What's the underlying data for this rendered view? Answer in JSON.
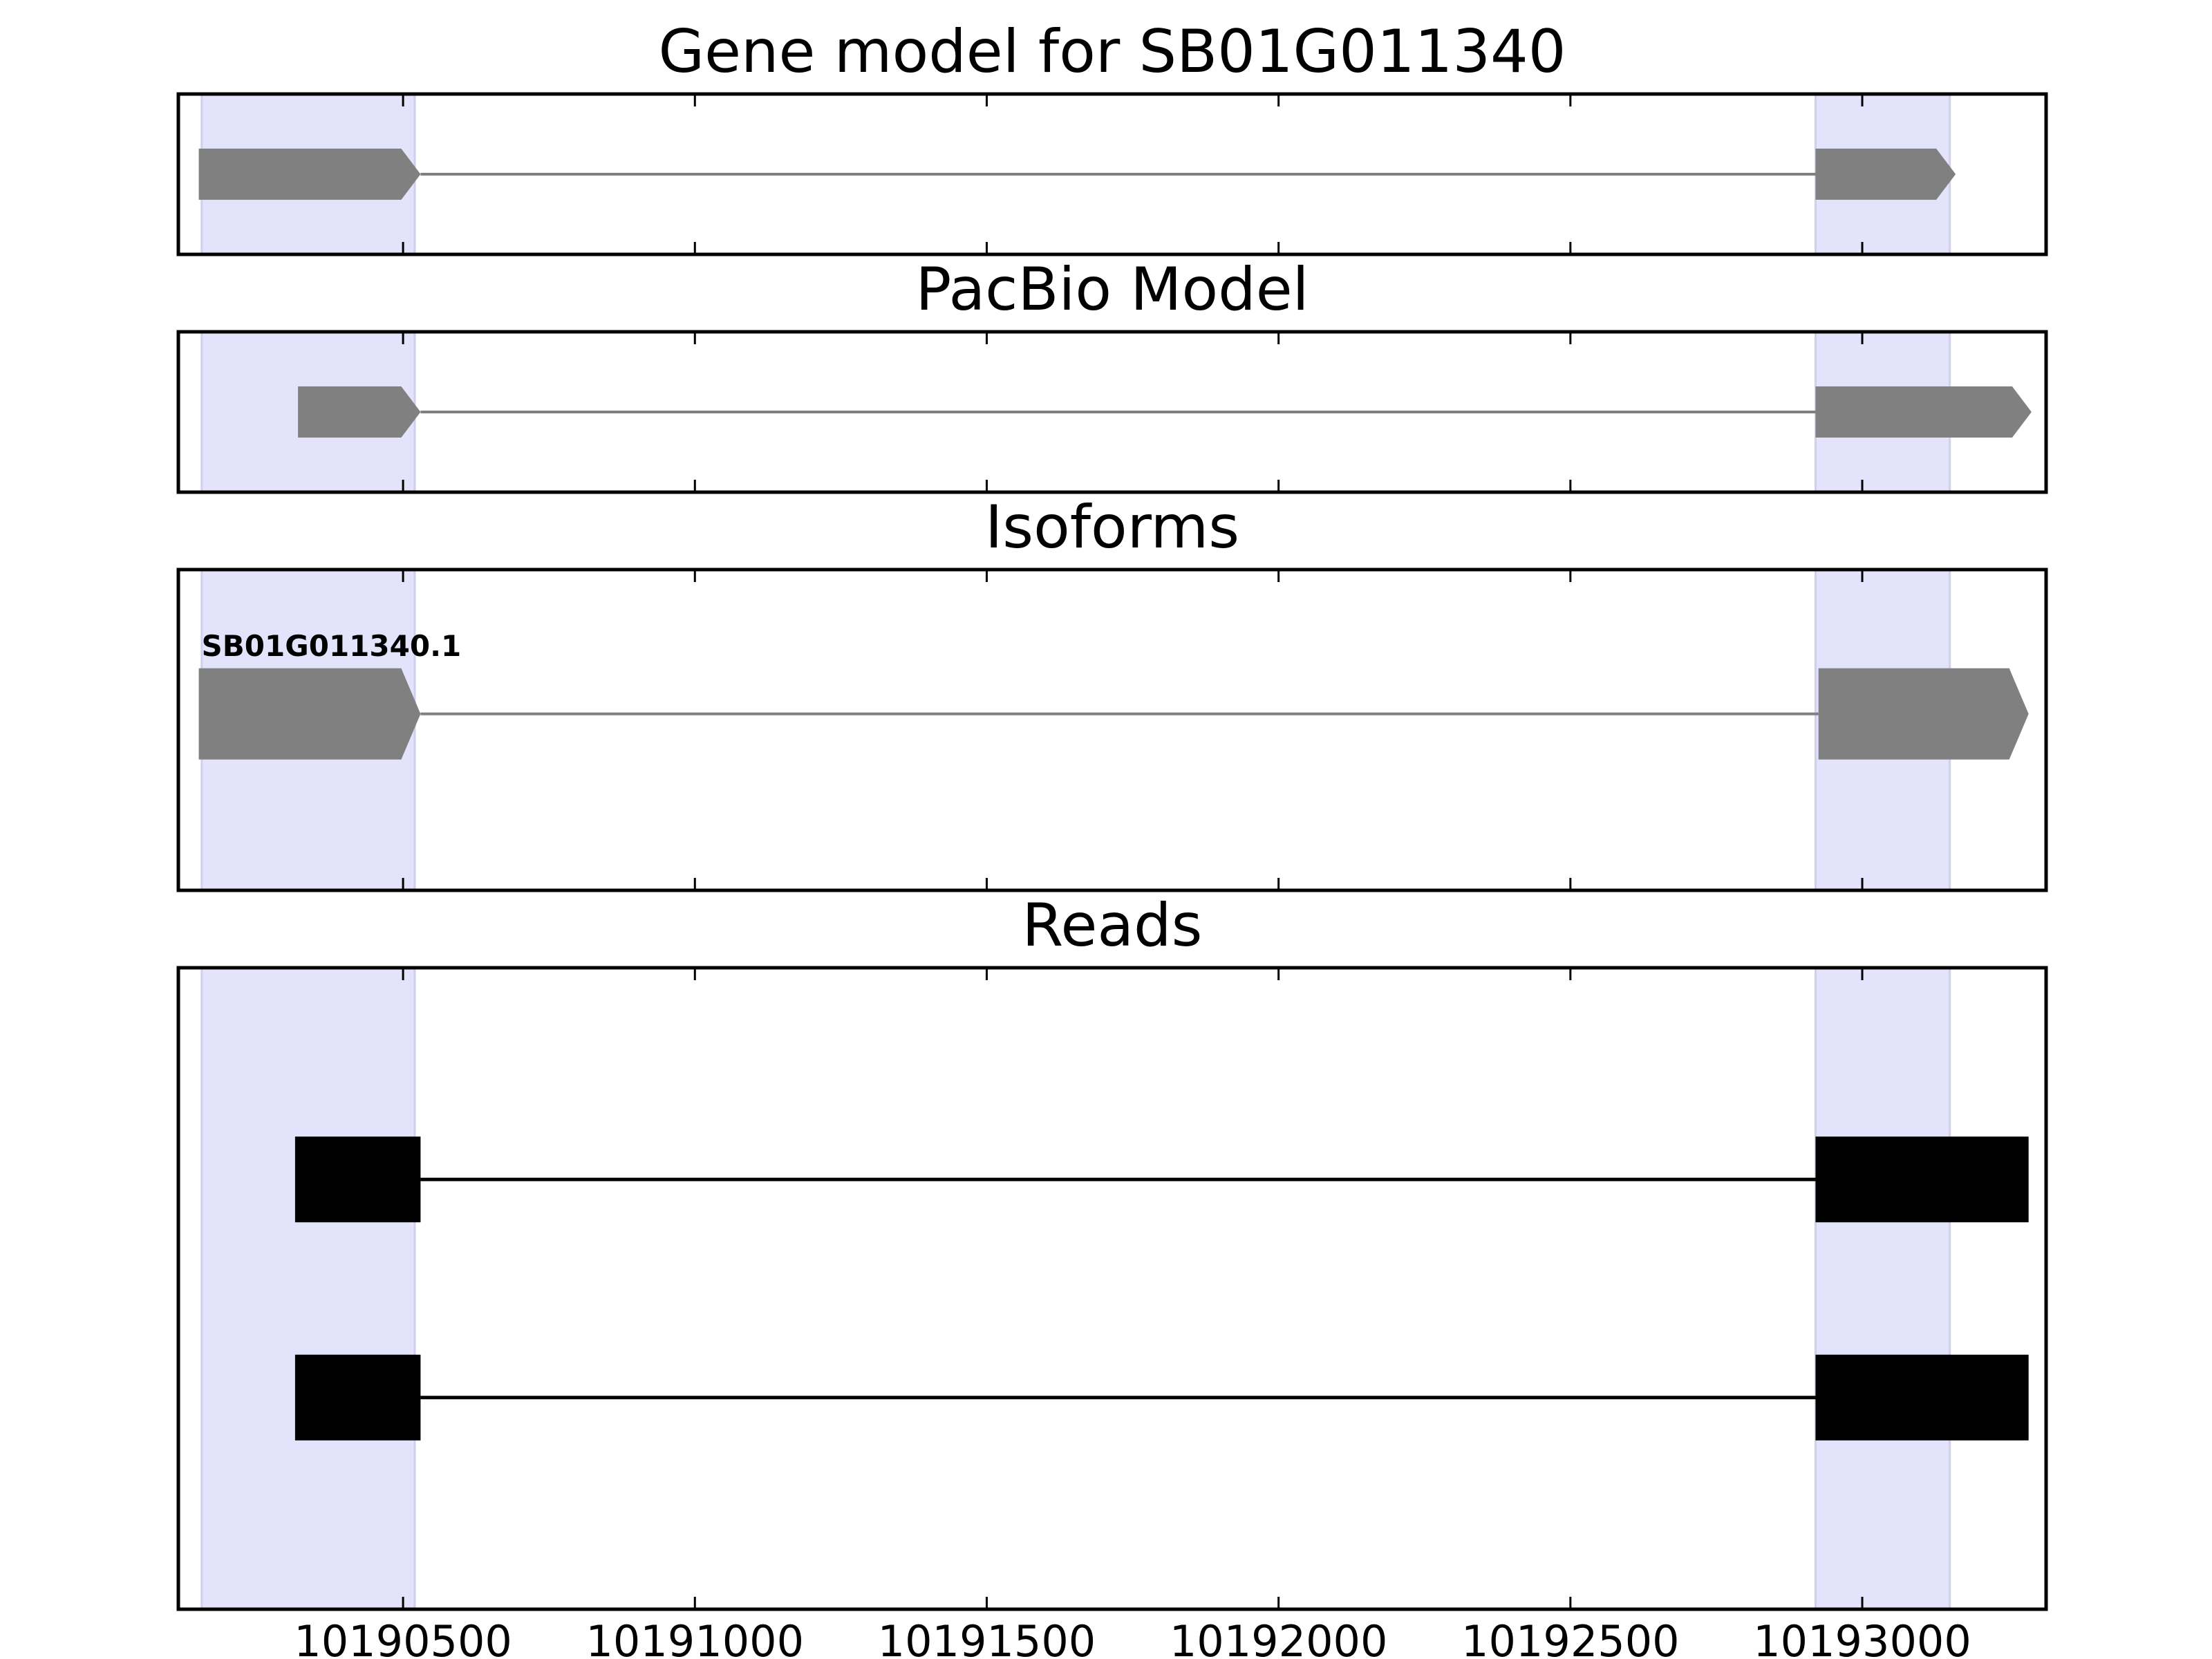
{
  "chart_data": {
    "type": "gene-track",
    "xlim": [
      10190115,
      10193315
    ],
    "xticks": [
      10190500,
      10191000,
      10191500,
      10192000,
      10192500,
      10193000
    ],
    "xtick_labels": [
      "10190500",
      "10191000",
      "10191500",
      "10192000",
      "10192500",
      "10193000"
    ],
    "highlight_regions": [
      {
        "start": 10190155,
        "end": 10190520
      },
      {
        "start": 10192920,
        "end": 10193150
      }
    ],
    "colors": {
      "highlight": "#e3e3fb",
      "highlight_edge": "#cfcfee",
      "model_feature": "#808080",
      "read_feature": "#000000"
    },
    "panels": [
      {
        "title": "Gene model for SB01G011340",
        "kind": "model",
        "tracks": [
          {
            "y": 0.5,
            "exons": [
              [
                10190150,
                10190530
              ],
              [
                10192920,
                10193160
              ]
            ],
            "strand": "+"
          }
        ]
      },
      {
        "title": "PacBio Model",
        "kind": "model",
        "tracks": [
          {
            "y": 0.5,
            "exons": [
              [
                10190320,
                10190530
              ],
              [
                10192920,
                10193290
              ]
            ],
            "strand": "+"
          }
        ]
      },
      {
        "title": "Isoforms",
        "kind": "model",
        "tracks": [
          {
            "y": 0.45,
            "label": "SB01G011340.1",
            "exons": [
              [
                10190150,
                10190530
              ],
              [
                10192925,
                10193285
              ]
            ],
            "strand": "+"
          }
        ]
      },
      {
        "title": "Reads",
        "kind": "reads",
        "tracks": [
          {
            "y": 0.33,
            "exons": [
              [
                10190315,
                10190530
              ],
              [
                10192920,
                10193285
              ]
            ]
          },
          {
            "y": 0.67,
            "exons": [
              [
                10190315,
                10190530
              ],
              [
                10192920,
                10193285
              ]
            ]
          }
        ]
      }
    ]
  }
}
